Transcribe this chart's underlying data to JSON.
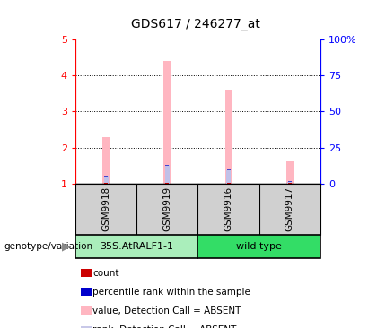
{
  "title": "GDS617 / 246277_at",
  "samples": [
    "GSM9918",
    "GSM9919",
    "GSM9916",
    "GSM9917"
  ],
  "value_absent": [
    2.3,
    4.4,
    3.6,
    1.62
  ],
  "rank_absent": [
    1.22,
    1.52,
    1.38,
    1.06
  ],
  "ylim_left": [
    1,
    5
  ],
  "ylim_right": [
    0,
    100
  ],
  "yticks_left": [
    1,
    2,
    3,
    4,
    5
  ],
  "yticks_right": [
    0,
    25,
    50,
    75,
    100
  ],
  "ytick_labels_right": [
    "0",
    "25",
    "50",
    "75",
    "100%"
  ],
  "sample_bg_color": "#D0D0D0",
  "group_defs": [
    {
      "start": 0,
      "end": 2,
      "label": "35S.AtRALF1-1",
      "color": "#AAEEBB"
    },
    {
      "start": 2,
      "end": 4,
      "label": "wild type",
      "color": "#33DD66"
    }
  ],
  "legend_items": [
    {
      "color": "#CC0000",
      "label": "count"
    },
    {
      "color": "#0000CC",
      "label": "percentile rank within the sample"
    },
    {
      "color": "#FFB6C1",
      "label": "value, Detection Call = ABSENT"
    },
    {
      "color": "#C8C8E8",
      "label": "rank, Detection Call = ABSENT"
    }
  ],
  "pink_bar_color": "#FFB6C1",
  "blue_bar_color": "#C0C0E8",
  "red_mark_color": "#CC0000",
  "blue_mark_color": "#4444CC"
}
